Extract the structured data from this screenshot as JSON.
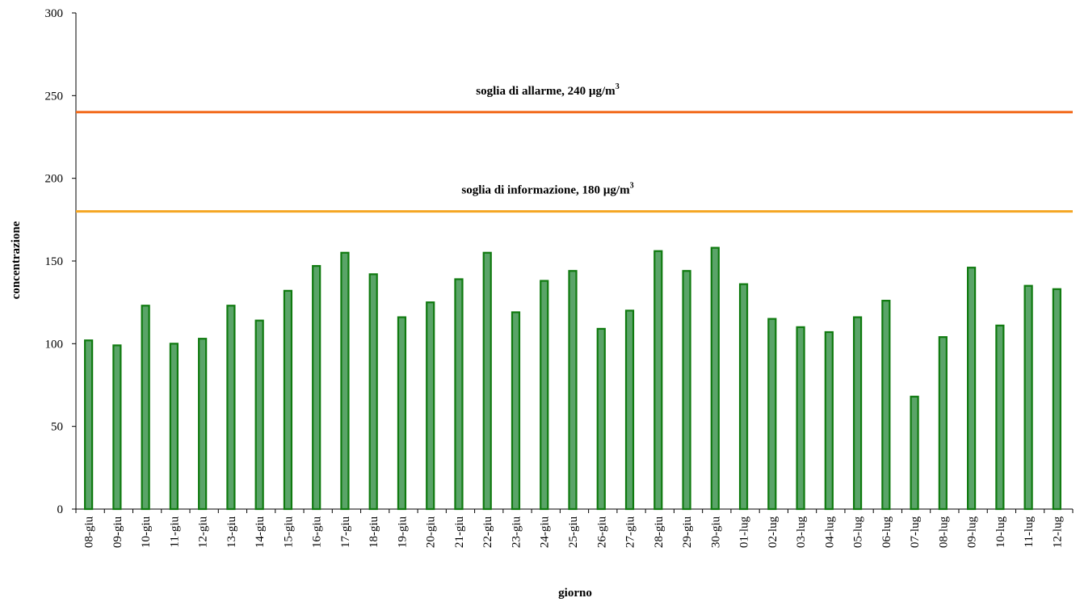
{
  "chart_data": {
    "type": "bar",
    "title": "",
    "xlabel": "giorno",
    "ylabel": "concentrazione",
    "ylim": [
      0,
      300
    ],
    "yticks": [
      0,
      50,
      100,
      150,
      200,
      250,
      300
    ],
    "grid": false,
    "categories": [
      "08-giu",
      "09-giu",
      "10-giu",
      "11-giu",
      "12-giu",
      "13-giu",
      "14-giu",
      "15-giu",
      "16-giu",
      "17-giu",
      "18-giu",
      "19-giu",
      "20-giu",
      "21-giu",
      "22-giu",
      "23-giu",
      "24-giu",
      "25-giu",
      "26-giu",
      "27-giu",
      "28-giu",
      "29-giu",
      "30-giu",
      "01-lug",
      "02-lug",
      "03-lug",
      "04-lug",
      "05-lug",
      "06-lug",
      "07-lug",
      "08-lug",
      "09-lug",
      "10-lug",
      "11-lug",
      "12-lug"
    ],
    "values": [
      102,
      99,
      123,
      100,
      103,
      123,
      114,
      132,
      147,
      155,
      142,
      116,
      125,
      139,
      155,
      119,
      138,
      144,
      109,
      120,
      156,
      144,
      158,
      136,
      115,
      110,
      107,
      116,
      126,
      68,
      104,
      146,
      111,
      135,
      133
    ],
    "bar_color": "#5aa468",
    "bar_edge_color": "#0f7a0f",
    "thresholds": [
      {
        "label": "soglia di allarme,    240 µg/m",
        "sup": "3",
        "value": 240,
        "color": "#f26a1b"
      },
      {
        "label": "soglia di informazione,   180 µg/m",
        "sup": "3",
        "value": 180,
        "color": "#f5a623"
      }
    ]
  }
}
